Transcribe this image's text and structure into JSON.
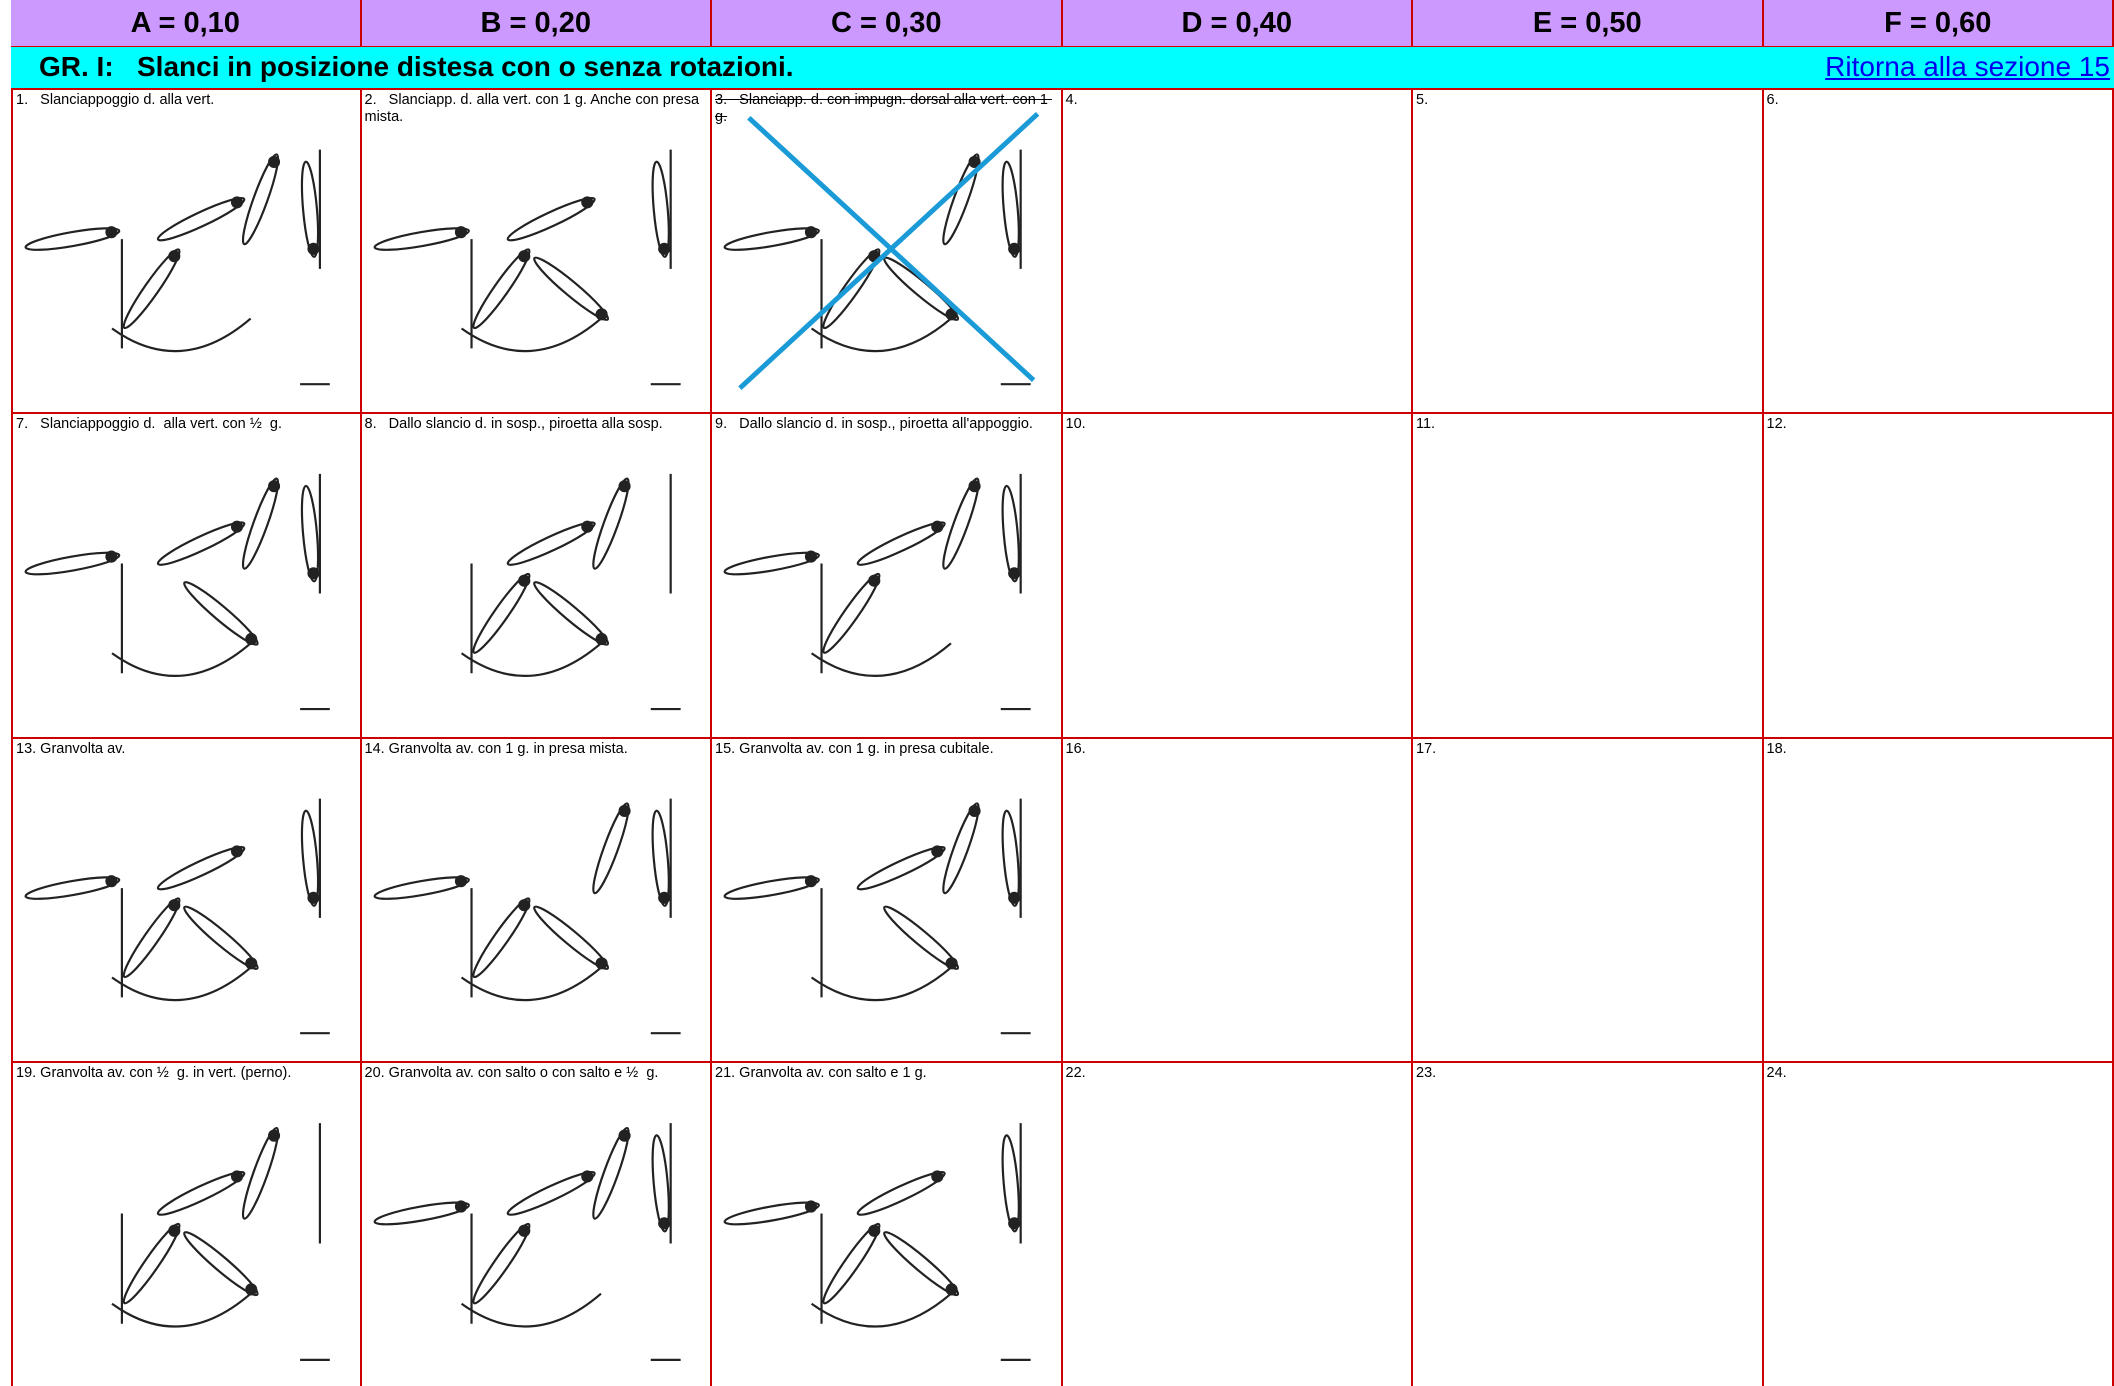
{
  "header": {
    "columns": [
      "A = 0,10",
      "B = 0,20",
      "C = 0,30",
      "D = 0,40",
      "E = 0,50",
      "F = 0,60"
    ]
  },
  "group": {
    "title": "GR. I:   Slanci in posizione distesa con o senza rotazioni.",
    "link": "Ritorna alla sezione 15"
  },
  "table": {
    "rows": [
      [
        "1.   Slanciappoggio d. alla vert.",
        "2.   Slanciapp. d. alla vert. con 1 g. Anche con presa mista.",
        "3.   Slanciapp. d. con impugn. dorsal alla vert. con 1 g.",
        "4.",
        "5.",
        "6."
      ],
      [
        "7.   Slanciappoggio d.  alla vert. con ½  g.",
        "8.   Dallo slancio d. in sosp., piroetta alla sosp.",
        "9.   Dallo slancio d. in sosp., piroetta all'appoggio.",
        "10.",
        "11.",
        "12."
      ],
      [
        "13. Granvolta av.",
        "14. Granvolta av. con 1 g. in presa mista.",
        "15. Granvolta av. con 1 g. in presa cubitale.",
        "16.",
        "17.",
        "18."
      ],
      [
        "19. Granvolta av. con ½  g. in vert. (perno).",
        "20. Granvolta av. con salto o con salto e ½  g.",
        "21. Granvolta av. con salto e 1 g.",
        "22.",
        "23.",
        "24."
      ]
    ]
  }
}
